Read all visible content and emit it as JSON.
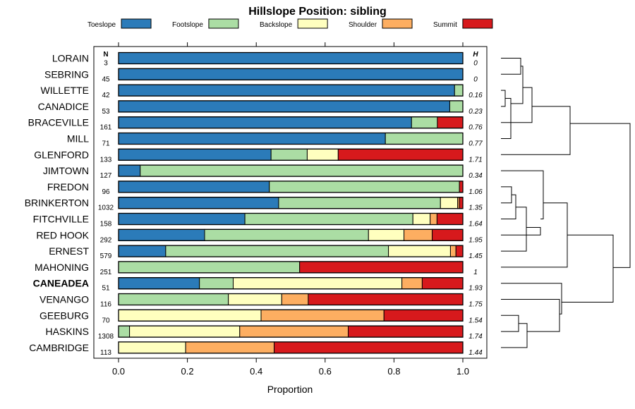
{
  "chart_data": {
    "type": "bar",
    "stacked": true,
    "orientation": "horizontal",
    "title": "Hillslope Position: sibling",
    "xlabel": "Proportion",
    "xlim": [
      0,
      1
    ],
    "x_ticks": [
      "0.0",
      "0.2",
      "0.4",
      "0.6",
      "0.8",
      "1.0"
    ],
    "n_header": "N",
    "h_header": "H",
    "legend": [
      {
        "name": "Toeslope",
        "color": "#2b7bb9"
      },
      {
        "name": "Footslope",
        "color": "#abdda4"
      },
      {
        "name": "Backslope",
        "color": "#ffffbf"
      },
      {
        "name": "Shoulder",
        "color": "#fdae61"
      },
      {
        "name": "Summit",
        "color": "#d7191c"
      }
    ],
    "rows": [
      {
        "name": "LORAIN",
        "n": "3",
        "h": "0",
        "bold": false,
        "values": [
          1.0,
          0,
          0,
          0,
          0
        ]
      },
      {
        "name": "SEBRING",
        "n": "45",
        "h": "0",
        "bold": false,
        "values": [
          1.0,
          0,
          0,
          0,
          0
        ]
      },
      {
        "name": "WILLETTE",
        "n": "42",
        "h": "0.16",
        "bold": false,
        "values": [
          0.976,
          0.024,
          0,
          0,
          0
        ]
      },
      {
        "name": "CANADICE",
        "n": "53",
        "h": "0.23",
        "bold": false,
        "values": [
          0.962,
          0.038,
          0,
          0,
          0
        ]
      },
      {
        "name": "BRACEVILLE",
        "n": "161",
        "h": "0.76",
        "bold": false,
        "values": [
          0.851,
          0.075,
          0,
          0,
          0.074
        ]
      },
      {
        "name": "MILL",
        "n": "71",
        "h": "0.77",
        "bold": false,
        "values": [
          0.775,
          0.225,
          0,
          0,
          0
        ]
      },
      {
        "name": "GLENFORD",
        "n": "133",
        "h": "1.71",
        "bold": false,
        "values": [
          0.443,
          0.105,
          0.09,
          0,
          0.362
        ]
      },
      {
        "name": "JIMTOWN",
        "n": "127",
        "h": "0.34",
        "bold": false,
        "values": [
          0.063,
          0.937,
          0,
          0,
          0
        ]
      },
      {
        "name": "FREDON",
        "n": "96",
        "h": "1.06",
        "bold": false,
        "values": [
          0.438,
          0.552,
          0,
          0,
          0.01
        ]
      },
      {
        "name": "BRINKERTON",
        "n": "1032",
        "h": "1.35",
        "bold": false,
        "values": [
          0.465,
          0.47,
          0.05,
          0.005,
          0.01
        ]
      },
      {
        "name": "FITCHVILLE",
        "n": "158",
        "h": "1.64",
        "bold": false,
        "values": [
          0.367,
          0.488,
          0.05,
          0.02,
          0.075
        ]
      },
      {
        "name": "RED HOOK",
        "n": "292",
        "h": "1.95",
        "bold": false,
        "values": [
          0.25,
          0.476,
          0.103,
          0.082,
          0.089
        ]
      },
      {
        "name": "ERNEST",
        "n": "579",
        "h": "1.45",
        "bold": false,
        "values": [
          0.137,
          0.647,
          0.18,
          0.016,
          0.02
        ]
      },
      {
        "name": "MAHONING",
        "n": "251",
        "h": "1",
        "bold": false,
        "values": [
          0,
          0.526,
          0,
          0,
          0.474
        ]
      },
      {
        "name": "CANEADEA",
        "n": "51",
        "h": "1.93",
        "bold": true,
        "values": [
          0.235,
          0.098,
          0.49,
          0.059,
          0.118
        ]
      },
      {
        "name": "VENANGO",
        "n": "116",
        "h": "1.75",
        "bold": false,
        "values": [
          0,
          0.319,
          0.155,
          0.077,
          0.449
        ]
      },
      {
        "name": "GEEBURG",
        "n": "70",
        "h": "1.54",
        "bold": false,
        "values": [
          0,
          0,
          0.414,
          0.357,
          0.229
        ]
      },
      {
        "name": "HASKINS",
        "n": "1308",
        "h": "1.74",
        "bold": false,
        "values": [
          0,
          0.032,
          0.32,
          0.315,
          0.333
        ]
      },
      {
        "name": "CAMBRIDGE",
        "n": "113",
        "h": "1.44",
        "bold": false,
        "values": [
          0,
          0,
          0.195,
          0.257,
          0.548
        ]
      }
    ]
  }
}
